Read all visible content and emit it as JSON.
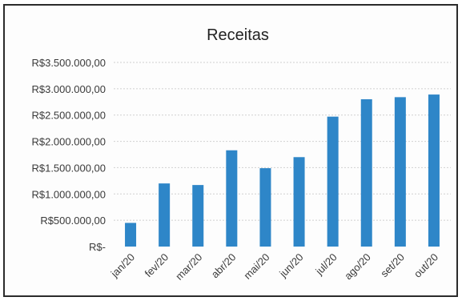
{
  "chart_data": {
    "type": "bar",
    "title": "Receitas",
    "xlabel": "",
    "ylabel": "",
    "categories": [
      "jan/20",
      "fev/20",
      "mar/20",
      "abr/20",
      "mai/20",
      "jun/20",
      "jul/20",
      "ago/20",
      "set/20",
      "out/20"
    ],
    "values": [
      450000,
      1200000,
      1170000,
      1830000,
      1490000,
      1700000,
      2470000,
      2800000,
      2840000,
      2890000
    ],
    "ylim": [
      0,
      3500000
    ],
    "yticks": [
      0,
      500000,
      1000000,
      1500000,
      2000000,
      2500000,
      3000000,
      3500000
    ],
    "ytick_labels": [
      "R$-",
      "R$500.000,00",
      "R$1.000.000,00",
      "R$1.500.000,00",
      "R$2.000.000,00",
      "R$2.500.000,00",
      "R$3.000.000,00",
      "R$3.500.000,00"
    ],
    "grid": true,
    "legend": "none",
    "bar_color": "#2e86c8"
  }
}
